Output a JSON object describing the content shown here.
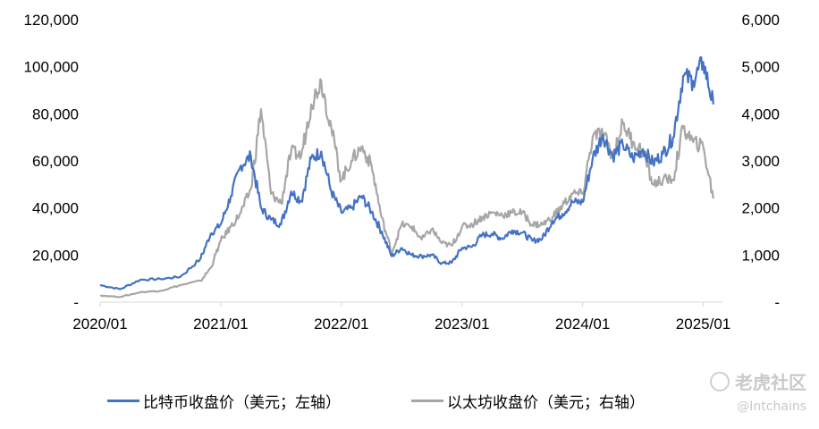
{
  "chart_data": {
    "type": "line",
    "title": "",
    "x_ticks": [
      "2020/01",
      "2021/01",
      "2022/01",
      "2023/01",
      "2024/01",
      "2025/01"
    ],
    "y_left": {
      "ticks": [
        "-",
        "20,000",
        "40,000",
        "60,000",
        "80,000",
        "100,000",
        "120,000"
      ],
      "ylim": [
        0,
        120000
      ]
    },
    "y_right": {
      "ticks": [
        "-",
        "1,000",
        "2,000",
        "3,000",
        "4,000",
        "5,000",
        "6,000"
      ],
      "ylim": [
        0,
        6000
      ]
    },
    "grid": false,
    "legend_position": "bottom",
    "series": [
      {
        "name": "比特币收盘价（美元；左轴）",
        "axis": "left",
        "color": "#4472C4",
        "x": [
          "2020-01",
          "2020-03",
          "2020-05",
          "2020-07",
          "2020-09",
          "2020-11",
          "2020-12",
          "2021-01",
          "2021-02",
          "2021-03",
          "2021-04",
          "2021-05",
          "2021-06",
          "2021-07",
          "2021-08",
          "2021-09",
          "2021-10",
          "2021-11",
          "2021-12",
          "2022-01",
          "2022-02",
          "2022-03",
          "2022-04",
          "2022-05",
          "2022-06",
          "2022-07",
          "2022-08",
          "2022-09",
          "2022-10",
          "2022-11",
          "2022-12",
          "2023-01",
          "2023-02",
          "2023-03",
          "2023-04",
          "2023-05",
          "2023-06",
          "2023-07",
          "2023-08",
          "2023-09",
          "2023-10",
          "2023-11",
          "2023-12",
          "2024-01",
          "2024-02",
          "2024-03",
          "2024-04",
          "2024-05",
          "2024-06",
          "2024-07",
          "2024-08",
          "2024-09",
          "2024-10",
          "2024-11",
          "2024-12",
          "2025-01",
          "2025-02"
        ],
        "values": [
          7200,
          5500,
          9500,
          9800,
          10800,
          18500,
          29000,
          33000,
          45000,
          58000,
          62000,
          40000,
          35000,
          33000,
          47000,
          43000,
          61000,
          64000,
          47000,
          38000,
          40000,
          45000,
          38500,
          30000,
          19500,
          23000,
          20000,
          19500,
          20000,
          16500,
          16800,
          23000,
          23500,
          28500,
          29000,
          27000,
          30500,
          29500,
          26000,
          27000,
          34500,
          37500,
          42500,
          42500,
          61000,
          71000,
          62000,
          67000,
          61000,
          65000,
          59000,
          63000,
          70000,
          96000,
          94000,
          102000,
          84000
        ]
      },
      {
        "name": "以太坊收盘价（美元；右轴）",
        "axis": "right",
        "color": "#A6A6A6",
        "x": [
          "2020-01",
          "2020-03",
          "2020-05",
          "2020-07",
          "2020-09",
          "2020-11",
          "2020-12",
          "2021-01",
          "2021-02",
          "2021-03",
          "2021-04",
          "2021-05",
          "2021-06",
          "2021-07",
          "2021-08",
          "2021-09",
          "2021-10",
          "2021-11",
          "2021-12",
          "2022-01",
          "2022-02",
          "2022-03",
          "2022-04",
          "2022-05",
          "2022-06",
          "2022-07",
          "2022-08",
          "2022-09",
          "2022-10",
          "2022-11",
          "2022-12",
          "2023-01",
          "2023-02",
          "2023-03",
          "2023-04",
          "2023-05",
          "2023-06",
          "2023-07",
          "2023-08",
          "2023-09",
          "2023-10",
          "2023-11",
          "2023-12",
          "2024-01",
          "2024-02",
          "2024-03",
          "2024-04",
          "2024-05",
          "2024-06",
          "2024-07",
          "2024-08",
          "2024-09",
          "2024-10",
          "2024-11",
          "2024-12",
          "2025-01",
          "2025-02"
        ],
        "values": [
          140,
          110,
          210,
          240,
          360,
          450,
          730,
          1300,
          1600,
          1900,
          2400,
          4100,
          2300,
          2100,
          3200,
          3100,
          4200,
          4700,
          3700,
          2600,
          3000,
          3300,
          2900,
          1800,
          1050,
          1650,
          1600,
          1330,
          1550,
          1250,
          1200,
          1600,
          1650,
          1800,
          1900,
          1850,
          1900,
          1900,
          1650,
          1650,
          1800,
          2050,
          2300,
          2300,
          3500,
          3600,
          3100,
          3800,
          3400,
          3200,
          2500,
          2600,
          2600,
          3700,
          3400,
          3300,
          2200
        ]
      }
    ]
  }
}
